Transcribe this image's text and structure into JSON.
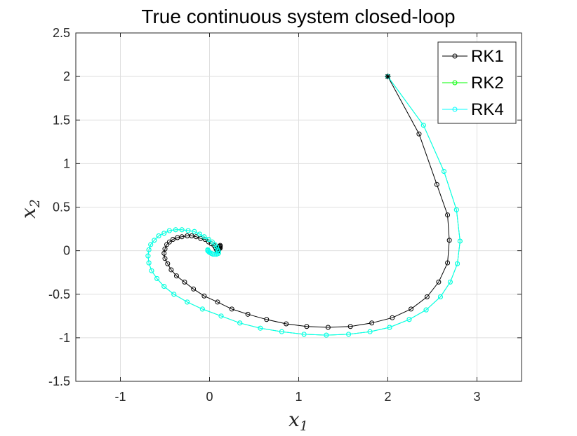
{
  "chart_data": {
    "type": "line",
    "title": "True continuous system closed-loop",
    "xlabel": "x",
    "xlabel_sub": "1",
    "ylabel": "x",
    "ylabel_sub": "2",
    "xlim": [
      -1.5,
      3.5
    ],
    "ylim": [
      -1.5,
      2.5
    ],
    "xticks": [
      -1,
      0,
      1,
      2,
      3
    ],
    "xtick_labels": [
      "-1",
      "0",
      "1",
      "2",
      "3"
    ],
    "yticks": [
      -1.5,
      -1,
      -0.5,
      0,
      0.5,
      1,
      1.5,
      2,
      2.5
    ],
    "ytick_labels": [
      "-1.5",
      "-1",
      "-0.5",
      "0",
      "0.5",
      "1",
      "1.5",
      "2",
      "2.5"
    ],
    "grid": true,
    "legend_position": "top-right",
    "start_point": {
      "x": 2,
      "y": 2,
      "marker": "asterisk"
    },
    "series": [
      {
        "name": "RK1",
        "color": "#000000",
        "marker": "circle",
        "points": [
          [
            2.0,
            2.0
          ],
          [
            2.35,
            1.34
          ],
          [
            2.55,
            0.76
          ],
          [
            2.67,
            0.41
          ],
          [
            2.69,
            0.12
          ],
          [
            2.67,
            -0.14
          ],
          [
            2.57,
            -0.36
          ],
          [
            2.44,
            -0.53
          ],
          [
            2.26,
            -0.67
          ],
          [
            2.05,
            -0.77
          ],
          [
            1.82,
            -0.83
          ],
          [
            1.58,
            -0.87
          ],
          [
            1.33,
            -0.88
          ],
          [
            1.09,
            -0.87
          ],
          [
            0.86,
            -0.84
          ],
          [
            0.64,
            -0.79
          ],
          [
            0.43,
            -0.73
          ],
          [
            0.25,
            -0.67
          ],
          [
            0.09,
            -0.59
          ],
          [
            -0.06,
            -0.52
          ],
          [
            -0.18,
            -0.44
          ],
          [
            -0.28,
            -0.36
          ],
          [
            -0.37,
            -0.29
          ],
          [
            -0.43,
            -0.22
          ],
          [
            -0.47,
            -0.15
          ],
          [
            -0.5,
            -0.09
          ],
          [
            -0.51,
            -0.03
          ],
          [
            -0.5,
            0.02
          ],
          [
            -0.48,
            0.07
          ],
          [
            -0.45,
            0.1
          ],
          [
            -0.41,
            0.13
          ],
          [
            -0.36,
            0.15
          ],
          [
            -0.31,
            0.16
          ],
          [
            -0.25,
            0.17
          ],
          [
            -0.2,
            0.17
          ],
          [
            -0.15,
            0.16
          ],
          [
            -0.1,
            0.14
          ],
          [
            -0.05,
            0.13
          ],
          [
            -0.01,
            0.1
          ],
          [
            0.02,
            0.08
          ],
          [
            0.05,
            0.06
          ],
          [
            0.07,
            0.03
          ],
          [
            0.08,
            0.01
          ],
          [
            0.09,
            -0.01
          ],
          [
            0.09,
            0.0
          ],
          [
            0.1,
            0.02
          ],
          [
            0.1,
            0.04
          ],
          [
            0.11,
            0.05
          ],
          [
            0.12,
            0.06
          ],
          [
            0.12,
            0.05
          ],
          [
            0.12,
            0.03
          ],
          [
            0.11,
            0.02
          ],
          [
            0.1,
            0.01
          ]
        ]
      },
      {
        "name": "RK2",
        "color": "#00ff00",
        "marker": "circle",
        "points": [
          [
            2.0,
            2.0
          ],
          [
            2.4,
            1.44
          ],
          [
            2.63,
            0.91
          ],
          [
            2.77,
            0.47
          ],
          [
            2.81,
            0.11
          ],
          [
            2.78,
            -0.15
          ],
          [
            2.7,
            -0.36
          ],
          [
            2.59,
            -0.53
          ],
          [
            2.43,
            -0.68
          ],
          [
            2.24,
            -0.79
          ],
          [
            2.02,
            -0.88
          ],
          [
            1.8,
            -0.93
          ],
          [
            1.56,
            -0.96
          ],
          [
            1.31,
            -0.97
          ],
          [
            1.06,
            -0.96
          ],
          [
            0.81,
            -0.93
          ],
          [
            0.57,
            -0.89
          ],
          [
            0.34,
            -0.83
          ],
          [
            0.13,
            -0.75
          ],
          [
            -0.08,
            -0.67
          ],
          [
            -0.25,
            -0.59
          ],
          [
            -0.4,
            -0.5
          ],
          [
            -0.51,
            -0.41
          ],
          [
            -0.59,
            -0.32
          ],
          [
            -0.65,
            -0.23
          ],
          [
            -0.68,
            -0.14
          ],
          [
            -0.69,
            -0.06
          ],
          [
            -0.68,
            0.01
          ],
          [
            -0.66,
            0.07
          ],
          [
            -0.62,
            0.12
          ],
          [
            -0.57,
            0.17
          ],
          [
            -0.51,
            0.2
          ],
          [
            -0.45,
            0.23
          ],
          [
            -0.38,
            0.24
          ],
          [
            -0.31,
            0.24
          ],
          [
            -0.24,
            0.23
          ],
          [
            -0.17,
            0.22
          ],
          [
            -0.11,
            0.19
          ],
          [
            -0.06,
            0.16
          ],
          [
            -0.01,
            0.13
          ],
          [
            0.03,
            0.1
          ],
          [
            0.06,
            0.07
          ],
          [
            0.08,
            0.04
          ],
          [
            0.09,
            0.01
          ],
          [
            0.1,
            -0.01
          ],
          [
            0.1,
            -0.03
          ],
          [
            0.08,
            -0.04
          ],
          [
            0.06,
            -0.04
          ],
          [
            0.04,
            -0.04
          ],
          [
            0.02,
            -0.03
          ],
          [
            0.0,
            -0.02
          ],
          [
            -0.01,
            -0.01
          ],
          [
            -0.02,
            0.0
          ],
          [
            -0.02,
            0.01
          ]
        ]
      },
      {
        "name": "RK4",
        "color": "#00ffff",
        "marker": "circle",
        "points": [
          [
            2.0,
            2.0
          ],
          [
            2.4,
            1.44
          ],
          [
            2.63,
            0.91
          ],
          [
            2.77,
            0.47
          ],
          [
            2.81,
            0.11
          ],
          [
            2.78,
            -0.15
          ],
          [
            2.7,
            -0.36
          ],
          [
            2.59,
            -0.53
          ],
          [
            2.43,
            -0.68
          ],
          [
            2.24,
            -0.79
          ],
          [
            2.02,
            -0.88
          ],
          [
            1.8,
            -0.93
          ],
          [
            1.56,
            -0.96
          ],
          [
            1.31,
            -0.97
          ],
          [
            1.06,
            -0.96
          ],
          [
            0.81,
            -0.93
          ],
          [
            0.57,
            -0.89
          ],
          [
            0.34,
            -0.83
          ],
          [
            0.13,
            -0.75
          ],
          [
            -0.08,
            -0.67
          ],
          [
            -0.25,
            -0.59
          ],
          [
            -0.4,
            -0.5
          ],
          [
            -0.51,
            -0.41
          ],
          [
            -0.59,
            -0.32
          ],
          [
            -0.65,
            -0.23
          ],
          [
            -0.68,
            -0.14
          ],
          [
            -0.69,
            -0.06
          ],
          [
            -0.68,
            0.01
          ],
          [
            -0.66,
            0.07
          ],
          [
            -0.62,
            0.12
          ],
          [
            -0.57,
            0.17
          ],
          [
            -0.51,
            0.2
          ],
          [
            -0.45,
            0.23
          ],
          [
            -0.38,
            0.24
          ],
          [
            -0.31,
            0.24
          ],
          [
            -0.24,
            0.23
          ],
          [
            -0.17,
            0.22
          ],
          [
            -0.11,
            0.19
          ],
          [
            -0.06,
            0.16
          ],
          [
            -0.01,
            0.13
          ],
          [
            0.03,
            0.1
          ],
          [
            0.06,
            0.07
          ],
          [
            0.08,
            0.04
          ],
          [
            0.09,
            0.01
          ],
          [
            0.1,
            -0.01
          ],
          [
            0.1,
            -0.03
          ],
          [
            0.08,
            -0.04
          ],
          [
            0.06,
            -0.04
          ],
          [
            0.04,
            -0.04
          ],
          [
            0.02,
            -0.03
          ],
          [
            0.0,
            -0.02
          ],
          [
            -0.01,
            -0.01
          ],
          [
            -0.02,
            0.0
          ],
          [
            -0.02,
            0.01
          ]
        ]
      }
    ]
  }
}
